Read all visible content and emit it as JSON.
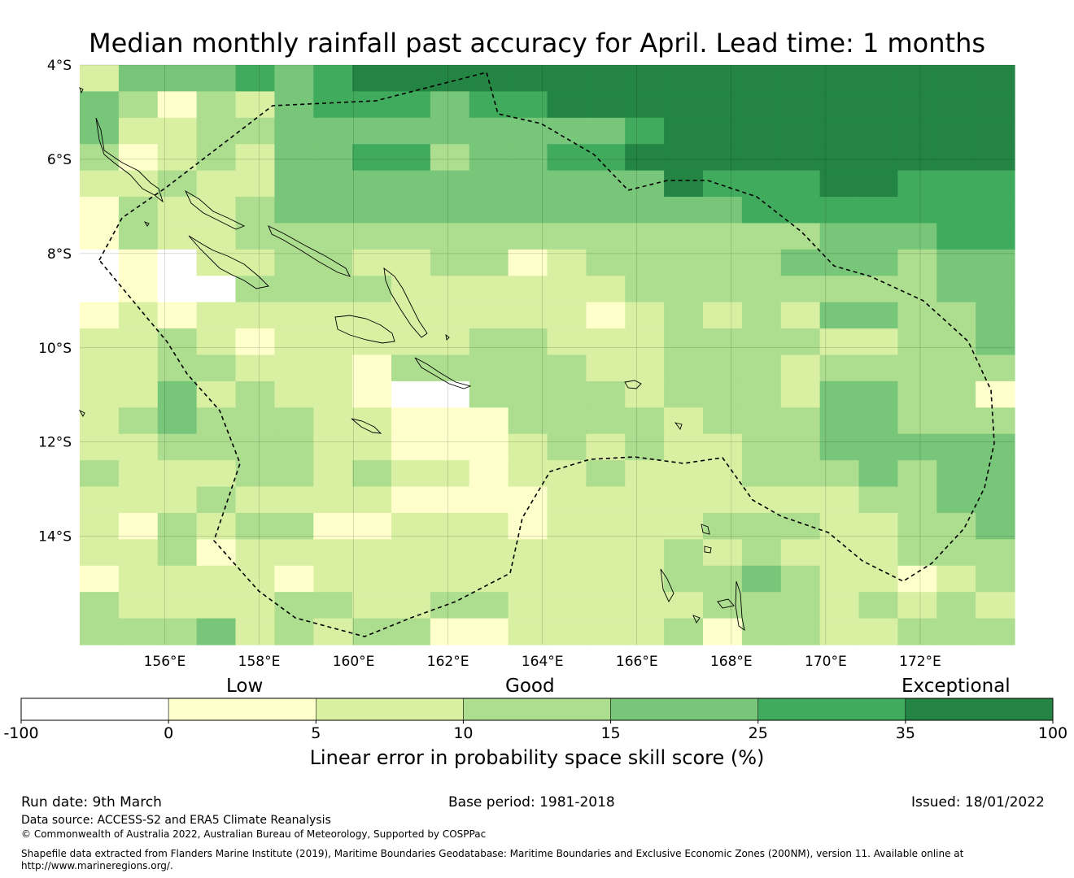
{
  "title": "Median monthly rainfall past accuracy for April. Lead time: 1 months",
  "map": {
    "lat_labels": [
      "4°S",
      "6°S",
      "8°S",
      "10°S",
      "12°S",
      "14°S"
    ],
    "lon_labels": [
      "156°E",
      "158°E",
      "160°E",
      "162°E",
      "164°E",
      "166°E",
      "168°E",
      "170°E",
      "172°E"
    ],
    "grid": {
      "lon_range_E": [
        154.2,
        174.0
      ],
      "lat_range_S": [
        4.0,
        16.3
      ],
      "cell_deg": 0.8333,
      "columns": 24,
      "rows": 22,
      "note": "category index per cell: 0=-100..0, 1=0..5, 2=5..10, 3=10..15, 4=15..25, 5=25..35, 6=35..100",
      "rows_north_to_south": [
        [
          2,
          4,
          4,
          4,
          5,
          4,
          5,
          6,
          6,
          6,
          6,
          6,
          6,
          6,
          6,
          6,
          6,
          6,
          6,
          6,
          6,
          6,
          6,
          6
        ],
        [
          4,
          3,
          1,
          3,
          2,
          4,
          5,
          5,
          5,
          4,
          5,
          5,
          6,
          6,
          6,
          6,
          6,
          6,
          6,
          6,
          6,
          6,
          6,
          6
        ],
        [
          4,
          2,
          2,
          3,
          3,
          4,
          4,
          4,
          4,
          4,
          4,
          4,
          4,
          4,
          5,
          6,
          6,
          6,
          6,
          6,
          6,
          6,
          6,
          6
        ],
        [
          3,
          1,
          2,
          3,
          2,
          4,
          4,
          5,
          5,
          3,
          4,
          4,
          5,
          5,
          6,
          6,
          6,
          6,
          6,
          6,
          6,
          6,
          6,
          6
        ],
        [
          2,
          2,
          3,
          2,
          2,
          4,
          4,
          4,
          4,
          4,
          4,
          4,
          4,
          4,
          4,
          6,
          5,
          5,
          5,
          6,
          6,
          5,
          5,
          5
        ],
        [
          1,
          3,
          2,
          2,
          3,
          4,
          4,
          4,
          4,
          4,
          4,
          4,
          4,
          4,
          4,
          4,
          4,
          5,
          5,
          5,
          5,
          5,
          5,
          5
        ],
        [
          1,
          3,
          2,
          2,
          3,
          3,
          3,
          3,
          3,
          3,
          3,
          3,
          3,
          3,
          3,
          3,
          3,
          3,
          3,
          4,
          4,
          4,
          5,
          5
        ],
        [
          0,
          1,
          0,
          2,
          2,
          3,
          3,
          2,
          2,
          3,
          3,
          1,
          2,
          3,
          3,
          3,
          3,
          3,
          4,
          4,
          4,
          3,
          4,
          4
        ],
        [
          0,
          1,
          0,
          0,
          3,
          3,
          3,
          3,
          2,
          2,
          2,
          2,
          2,
          2,
          3,
          3,
          3,
          3,
          3,
          3,
          3,
          3,
          4,
          4
        ],
        [
          1,
          2,
          1,
          2,
          2,
          2,
          2,
          2,
          2,
          2,
          2,
          2,
          2,
          1,
          2,
          3,
          2,
          3,
          2,
          4,
          4,
          3,
          3,
          4
        ],
        [
          2,
          2,
          3,
          2,
          1,
          2,
          2,
          2,
          2,
          2,
          3,
          3,
          2,
          2,
          2,
          3,
          3,
          3,
          3,
          2,
          2,
          3,
          3,
          4
        ],
        [
          2,
          2,
          3,
          3,
          2,
          2,
          2,
          1,
          3,
          3,
          3,
          3,
          3,
          2,
          2,
          3,
          3,
          3,
          2,
          3,
          3,
          3,
          3,
          3
        ],
        [
          2,
          2,
          4,
          2,
          3,
          2,
          2,
          1,
          0,
          0,
          3,
          3,
          3,
          3,
          2,
          3,
          3,
          3,
          2,
          4,
          4,
          3,
          3,
          1
        ],
        [
          2,
          3,
          4,
          3,
          3,
          3,
          2,
          2,
          1,
          1,
          1,
          3,
          3,
          3,
          3,
          2,
          3,
          3,
          3,
          4,
          4,
          3,
          3,
          3
        ],
        [
          2,
          2,
          3,
          3,
          3,
          3,
          2,
          2,
          1,
          1,
          1,
          2,
          3,
          2,
          3,
          2,
          2,
          3,
          3,
          4,
          4,
          4,
          4,
          4
        ],
        [
          3,
          2,
          2,
          2,
          3,
          3,
          2,
          3,
          2,
          2,
          1,
          2,
          2,
          3,
          2,
          2,
          2,
          3,
          3,
          3,
          4,
          3,
          4,
          4
        ],
        [
          2,
          2,
          2,
          3,
          2,
          2,
          2,
          2,
          1,
          1,
          1,
          1,
          2,
          2,
          2,
          2,
          2,
          2,
          2,
          2,
          3,
          3,
          4,
          4
        ],
        [
          2,
          1,
          3,
          2,
          3,
          3,
          1,
          1,
          2,
          2,
          2,
          1,
          2,
          2,
          2,
          2,
          3,
          3,
          3,
          2,
          2,
          3,
          3,
          4
        ],
        [
          2,
          2,
          3,
          1,
          2,
          2,
          2,
          2,
          2,
          2,
          2,
          2,
          2,
          2,
          2,
          3,
          2,
          3,
          2,
          2,
          2,
          3,
          3,
          3
        ],
        [
          1,
          2,
          2,
          2,
          2,
          1,
          2,
          2,
          2,
          2,
          2,
          2,
          2,
          2,
          2,
          3,
          3,
          4,
          3,
          2,
          2,
          1,
          2,
          3
        ],
        [
          3,
          2,
          2,
          2,
          2,
          3,
          3,
          2,
          2,
          3,
          3,
          2,
          2,
          2,
          2,
          2,
          3,
          3,
          3,
          2,
          3,
          2,
          3,
          2
        ],
        [
          3,
          3,
          3,
          4,
          2,
          3,
          2,
          3,
          3,
          1,
          1,
          2,
          2,
          2,
          2,
          3,
          1,
          3,
          3,
          2,
          2,
          3,
          3,
          3
        ]
      ]
    }
  },
  "colorbar": {
    "categories": [
      "Low",
      "Good",
      "Exceptional"
    ],
    "ticks": [
      "-100",
      "0",
      "5",
      "10",
      "15",
      "25",
      "35",
      "100"
    ],
    "colors": [
      "#ffffff",
      "#ffffcc",
      "#d9f0a3",
      "#addd8e",
      "#78c679",
      "#41ab5d",
      "#238443"
    ],
    "axis_label": "Linear error in probability space skill score (%)"
  },
  "footer": {
    "run_date": "Run date: 9th March",
    "base_period": "Base period: 1981-2018",
    "issued": "Issued: 18/01/2022",
    "data_source": "Data source: ACCESS-S2 and ERA5 Climate Reanalysis",
    "copyright": "© Commonwealth of Australia 2022, Australian Bureau of Meteorology, Supported by COSPPac",
    "shapefile_line1": "Shapefile data extracted from Flanders Marine Institute (2019), Maritime Boundaries Geodatabase: Maritime Boundaries and Exclusive Economic Zones (200NM), version 11. Available online at",
    "shapefile_line2": "http://www.marineregions.org/."
  }
}
